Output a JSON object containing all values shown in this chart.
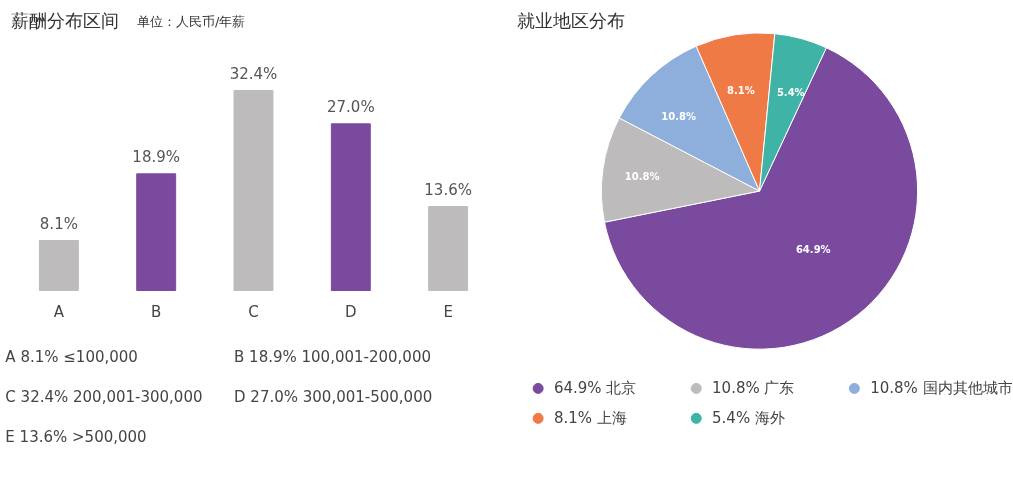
{
  "chart_data": [
    {
      "type": "bar",
      "title": "薪酬分布区间",
      "subtitle": "单位：人民币/年薪",
      "categories": [
        "A",
        "B",
        "C",
        "D",
        "E"
      ],
      "values": [
        8.1,
        18.9,
        32.4,
        27.0,
        13.6
      ],
      "colors": [
        "#bdbbbc",
        "#7a4a9f",
        "#bdbbbc",
        "#7a4a9f",
        "#bdbbbc"
      ],
      "value_labels": [
        "8.1%",
        "18.9%",
        "32.4%",
        "27.0%",
        "13.6%"
      ],
      "annotations": [
        "A 8.1%  ≤100,000",
        "B 18.9%  100,001-200,000",
        "C 32.4%  200,001-300,000",
        "D 27.0%  300,001-500,000",
        "E 13.6%  >500,000"
      ]
    },
    {
      "type": "pie",
      "title": "就业地区分布",
      "categories": [
        "北京",
        "广东",
        "国内其他城市",
        "上海",
        "海外"
      ],
      "values": [
        64.9,
        10.8,
        10.8,
        8.1,
        5.4
      ],
      "colors": [
        "#7a4a9f",
        "#bdbbbc",
        "#8eaedb",
        "#ef7a45",
        "#3fb3a6"
      ],
      "value_labels": [
        "64.9%",
        "10.8%",
        "10.8%",
        "8.1%",
        "5.4%"
      ],
      "legend": "bottom"
    }
  ]
}
